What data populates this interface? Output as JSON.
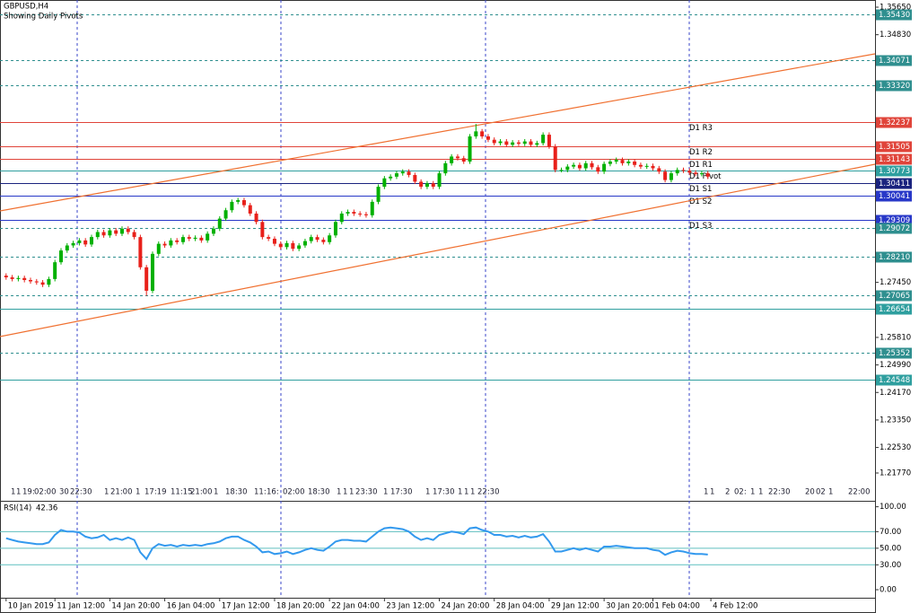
{
  "chart_data": [
    {
      "type": "candlestick",
      "symbol": "GBPUSD,H4",
      "subtitle": "Showing Daily Pivots",
      "xlim": [
        -1,
        142.4
      ],
      "ylim": [
        1.20968,
        1.35864
      ],
      "up_color": "#00b000",
      "down_color": "#e8201a",
      "yticks": [
        {
          "value": 1.3565,
          "label": "1.35650"
        },
        {
          "value": 1.3483,
          "label": "1.34830"
        },
        {
          "value": 1.2745,
          "label": "1.27450"
        },
        {
          "value": 1.2581,
          "label": "1.25810"
        },
        {
          "value": 1.2499,
          "label": "1.24990"
        },
        {
          "value": 1.2417,
          "label": "1.24170"
        },
        {
          "value": 1.2335,
          "label": "1.23350"
        },
        {
          "value": 1.2253,
          "label": "1.22530"
        },
        {
          "value": 1.2177,
          "label": "1.21770"
        }
      ],
      "levels": [
        {
          "value": 1.3543,
          "label": "1.35430",
          "color": "#2f8f8f",
          "dashed": true
        },
        {
          "value": 1.34071,
          "label": "1.34071",
          "color": "#2f8f8f",
          "dashed": true
        },
        {
          "value": 1.3332,
          "label": "1.33320",
          "color": "#2f8f8f",
          "dashed": true
        },
        {
          "value": 1.32237,
          "label": "1.32237",
          "color": "#e0443a",
          "dashed": false,
          "name": "D1 R3"
        },
        {
          "value": 1.31505,
          "label": "1.31505",
          "color": "#e0443a",
          "dashed": false,
          "name": "D1 R2"
        },
        {
          "value": 1.31143,
          "label": "1.31143",
          "color": "#e0443a",
          "dashed": false,
          "name": "D1 R1"
        },
        {
          "value": 1.30773,
          "label": "1.30773",
          "color": "#2f9f9f",
          "dashed": false,
          "name": "D1 Pivot"
        },
        {
          "value": 1.30411,
          "label": "1.30411",
          "color": "#1a237e",
          "dashed": false,
          "name": "D1 S1"
        },
        {
          "value": 1.30041,
          "label": "1.30041",
          "color": "#2838c8",
          "dashed": false,
          "name": "D1 S2"
        },
        {
          "value": 1.29309,
          "label": "1.29309",
          "color": "#2838c8",
          "dashed": false,
          "name": "D1 S3"
        },
        {
          "value": 1.29072,
          "label": "1.29072",
          "color": "#2f8f8f",
          "dashed": true
        },
        {
          "value": 1.2821,
          "label": "1.28210",
          "color": "#2f8f8f",
          "dashed": true
        },
        {
          "value": 1.27065,
          "label": "1.27065",
          "color": "#2f8f8f",
          "dashed": true
        },
        {
          "value": 1.26654,
          "label": "1.26654",
          "color": "#2f9f9f",
          "dashed": false
        },
        {
          "value": 1.25352,
          "label": "1.25352",
          "color": "#2f8f8f",
          "dashed": true
        },
        {
          "value": 1.24548,
          "label": "1.24548",
          "color": "#2f9f9f",
          "dashed": false
        }
      ],
      "time_labels": [
        "1",
        "1",
        "19:",
        "02:00",
        "30",
        "22:30",
        "1",
        "21:00",
        "1",
        "17:19",
        "11:15",
        "21:00",
        "1",
        "18:30",
        "11:",
        "16:",
        "02:00",
        "18:30",
        "1",
        "1",
        "1",
        "23:30",
        "1",
        "17:30",
        "1",
        "17:30",
        "1",
        "1",
        "1",
        "22:30",
        "1",
        "1",
        "2",
        "02:",
        "1",
        "1",
        "22:30",
        "20",
        "02",
        "1",
        "22:00"
      ],
      "open": [
        1.2765,
        1.276,
        1.2755,
        1.2758,
        1.2752,
        1.2748,
        1.2745,
        1.2738,
        1.2755,
        1.2805,
        1.284,
        1.2855,
        1.2862,
        1.287,
        1.2858,
        1.288,
        1.2895,
        1.2885,
        1.29,
        1.289,
        1.2905,
        1.2895,
        1.288,
        1.279,
        1.272,
        1.283,
        1.286,
        1.2855,
        1.287,
        1.2865,
        1.288,
        1.2875,
        1.2878,
        1.287,
        1.289,
        1.2905,
        1.2935,
        1.296,
        1.2985,
        1.299,
        1.2975,
        1.295,
        1.2925,
        1.288,
        1.2875,
        1.286,
        1.285,
        1.2862,
        1.2845,
        1.2855,
        1.2868,
        1.288,
        1.2872,
        1.2865,
        1.2885,
        1.2925,
        1.295,
        1.2955,
        1.295,
        1.2948,
        1.2945,
        1.2985,
        1.303,
        1.3055,
        1.306,
        1.307,
        1.3075,
        1.3065,
        1.3045,
        1.303,
        1.304,
        1.303,
        1.307,
        1.31,
        1.312,
        1.3115,
        1.3105,
        1.318,
        1.3195,
        1.318,
        1.317,
        1.316,
        1.3165,
        1.3155,
        1.3162,
        1.3158,
        1.3165,
        1.3155,
        1.316,
        1.3185,
        1.315,
        1.308,
        1.308,
        1.309,
        1.3095,
        1.3085,
        1.31,
        1.3088,
        1.3075,
        1.3098,
        1.3105,
        1.311,
        1.31,
        1.3105,
        1.3095,
        1.309,
        1.3092,
        1.3085,
        1.3075,
        1.305,
        1.307,
        1.308,
        1.3078,
        1.3072,
        1.3068,
        1.307
      ],
      "high": [
        1.2772,
        1.2767,
        1.2765,
        1.2765,
        1.2759,
        1.2755,
        1.2752,
        1.2762,
        1.2812,
        1.2847,
        1.2862,
        1.2869,
        1.2877,
        1.2877,
        1.2887,
        1.2902,
        1.2902,
        1.2907,
        1.2907,
        1.2912,
        1.2912,
        1.2902,
        1.2887,
        1.2797,
        1.2837,
        1.2867,
        1.2867,
        1.2877,
        1.2877,
        1.2887,
        1.2887,
        1.2885,
        1.2885,
        1.2897,
        1.2912,
        1.2942,
        1.2967,
        1.2992,
        1.2997,
        1.2997,
        1.2982,
        1.2957,
        1.2932,
        1.2887,
        1.2882,
        1.2867,
        1.2869,
        1.2869,
        1.2862,
        1.2875,
        1.2887,
        1.2887,
        1.2879,
        1.2892,
        1.2932,
        1.2957,
        1.2962,
        1.2962,
        1.2957,
        1.2955,
        1.2992,
        1.3037,
        1.3062,
        1.3067,
        1.3077,
        1.3082,
        1.3082,
        1.3072,
        1.3052,
        1.3047,
        1.3047,
        1.3077,
        1.3107,
        1.3127,
        1.3127,
        1.3122,
        1.3187,
        1.3217,
        1.3202,
        1.3187,
        1.3177,
        1.3172,
        1.3172,
        1.3169,
        1.3169,
        1.3172,
        1.3172,
        1.3167,
        1.3192,
        1.3192,
        1.3157,
        1.3087,
        1.3097,
        1.3102,
        1.3102,
        1.3107,
        1.3107,
        1.3095,
        1.3105,
        1.3112,
        1.3117,
        1.3117,
        1.3112,
        1.3112,
        1.3102,
        1.3099,
        1.3099,
        1.3092,
        1.3082,
        1.3077,
        1.3087,
        1.3087,
        1.3085,
        1.3079,
        1.3077,
        1.3077
      ],
      "low": [
        1.2753,
        1.2748,
        1.2748,
        1.2745,
        1.2741,
        1.2738,
        1.2731,
        1.2731,
        1.2748,
        1.2798,
        1.2833,
        1.2848,
        1.2855,
        1.2851,
        1.2851,
        1.2873,
        1.2878,
        1.2878,
        1.2883,
        1.2883,
        1.2888,
        1.2873,
        1.2783,
        1.2705,
        1.2713,
        1.2823,
        1.2848,
        1.2848,
        1.2858,
        1.2858,
        1.2868,
        1.2868,
        1.2863,
        1.2863,
        1.2883,
        1.2898,
        1.2928,
        1.2953,
        1.2978,
        1.2968,
        1.2943,
        1.2918,
        1.2873,
        1.2868,
        1.2853,
        1.2843,
        1.2843,
        1.2838,
        1.2838,
        1.2848,
        1.2861,
        1.2865,
        1.2858,
        1.2858,
        1.2878,
        1.2918,
        1.2943,
        1.2943,
        1.2941,
        1.2938,
        1.2938,
        1.2978,
        1.3023,
        1.3048,
        1.3053,
        1.3063,
        1.3058,
        1.3038,
        1.3023,
        1.3023,
        1.3023,
        1.3023,
        1.3063,
        1.3093,
        1.3108,
        1.3098,
        1.3098,
        1.3173,
        1.3173,
        1.3163,
        1.3153,
        1.3153,
        1.3148,
        1.3148,
        1.3151,
        1.3151,
        1.3148,
        1.3148,
        1.3153,
        1.3143,
        1.3073,
        1.3073,
        1.3073,
        1.3083,
        1.3078,
        1.3078,
        1.3081,
        1.3068,
        1.3068,
        1.3091,
        1.3098,
        1.3093,
        1.3093,
        1.3088,
        1.3083,
        1.3083,
        1.3078,
        1.3068,
        1.3043,
        1.3043,
        1.3063,
        1.3071,
        1.3065,
        1.3061,
        1.3061,
        1.3053
      ],
      "close": [
        1.276,
        1.2755,
        1.2758,
        1.2752,
        1.2748,
        1.2745,
        1.2738,
        1.2755,
        1.2805,
        1.284,
        1.2855,
        1.2862,
        1.287,
        1.2858,
        1.288,
        1.2895,
        1.2885,
        1.29,
        1.289,
        1.2905,
        1.2895,
        1.288,
        1.279,
        1.272,
        1.283,
        1.286,
        1.2855,
        1.287,
        1.2865,
        1.288,
        1.2875,
        1.2878,
        1.287,
        1.289,
        1.2905,
        1.2935,
        1.296,
        1.2985,
        1.299,
        1.2975,
        1.295,
        1.2925,
        1.288,
        1.2875,
        1.286,
        1.285,
        1.2862,
        1.2845,
        1.2855,
        1.2868,
        1.288,
        1.2872,
        1.2865,
        1.2885,
        1.2925,
        1.295,
        1.2955,
        1.295,
        1.2948,
        1.2945,
        1.2985,
        1.303,
        1.3055,
        1.306,
        1.307,
        1.3075,
        1.3065,
        1.3045,
        1.303,
        1.304,
        1.303,
        1.307,
        1.31,
        1.312,
        1.3115,
        1.3105,
        1.318,
        1.3195,
        1.318,
        1.317,
        1.316,
        1.3165,
        1.3155,
        1.3162,
        1.3158,
        1.3165,
        1.3155,
        1.316,
        1.3185,
        1.315,
        1.308,
        1.308,
        1.309,
        1.3095,
        1.3085,
        1.31,
        1.3088,
        1.3075,
        1.3098,
        1.3105,
        1.311,
        1.31,
        1.3105,
        1.3095,
        1.309,
        1.3092,
        1.3085,
        1.3075,
        1.305,
        1.307,
        1.308,
        1.3078,
        1.3072,
        1.3068,
        1.307,
        1.306
      ]
    },
    {
      "type": "line",
      "name": "RSI(14)",
      "color": "#3399ee",
      "level_color": "#5fbfbf",
      "xlim": [
        -1,
        142.4
      ],
      "ylim": [
        -9.7,
        105
      ],
      "yticks": [
        {
          "value": 100,
          "label": "100.00"
        },
        {
          "value": 70,
          "label": "70.00"
        },
        {
          "value": 50,
          "label": "50.00"
        },
        {
          "value": 30,
          "label": "30.00"
        },
        {
          "value": 0,
          "label": "0.00"
        }
      ],
      "xticks": [
        {
          "value": 0,
          "label": "10 Jan 2019"
        },
        {
          "value": 8,
          "label": "11 Jan 12:00"
        },
        {
          "value": 17,
          "label": "14 Jan 20:00"
        },
        {
          "value": 26,
          "label": "16 Jan 04:00"
        },
        {
          "value": 35,
          "label": "17 Jan 12:00"
        },
        {
          "value": 44,
          "label": "18 Jan 20:00"
        },
        {
          "value": 53,
          "label": "22 Jan 04:00"
        },
        {
          "value": 62,
          "label": "23 Jan 12:00"
        },
        {
          "value": 71,
          "label": "24 Jan 20:00"
        },
        {
          "value": 80,
          "label": "28 Jan 04:00"
        },
        {
          "value": 89,
          "label": "29 Jan 12:00"
        },
        {
          "value": 98,
          "label": "30 Jan 20:00"
        },
        {
          "value": 106,
          "label": "1 Feb 04:00"
        },
        {
          "value": 115.5,
          "label": "4 Feb 12:00"
        }
      ],
      "values": [
        62,
        60,
        58,
        57,
        56,
        55,
        55,
        57,
        66,
        72,
        70,
        70,
        69,
        64,
        62,
        63,
        66,
        60,
        62,
        60,
        63,
        60,
        45,
        37,
        50,
        55,
        53,
        54,
        52,
        54,
        53,
        54,
        53,
        55,
        56,
        58,
        62,
        64,
        64,
        60,
        57,
        52,
        45,
        46,
        43,
        44,
        46,
        43,
        45,
        48,
        50,
        48,
        47,
        52,
        58,
        60,
        60,
        59,
        59,
        58,
        64,
        70,
        74,
        75,
        74,
        73,
        70,
        64,
        60,
        62,
        60,
        66,
        68,
        70,
        69,
        67,
        74,
        75,
        72,
        70,
        66,
        66,
        64,
        65,
        63,
        65,
        63,
        64,
        67,
        58,
        46,
        46,
        48,
        50,
        48,
        50,
        48,
        46,
        52,
        52,
        53,
        52,
        51,
        50,
        50,
        50,
        48,
        47,
        42,
        45,
        47,
        46,
        44,
        43,
        43,
        42.36
      ]
    }
  ]
}
